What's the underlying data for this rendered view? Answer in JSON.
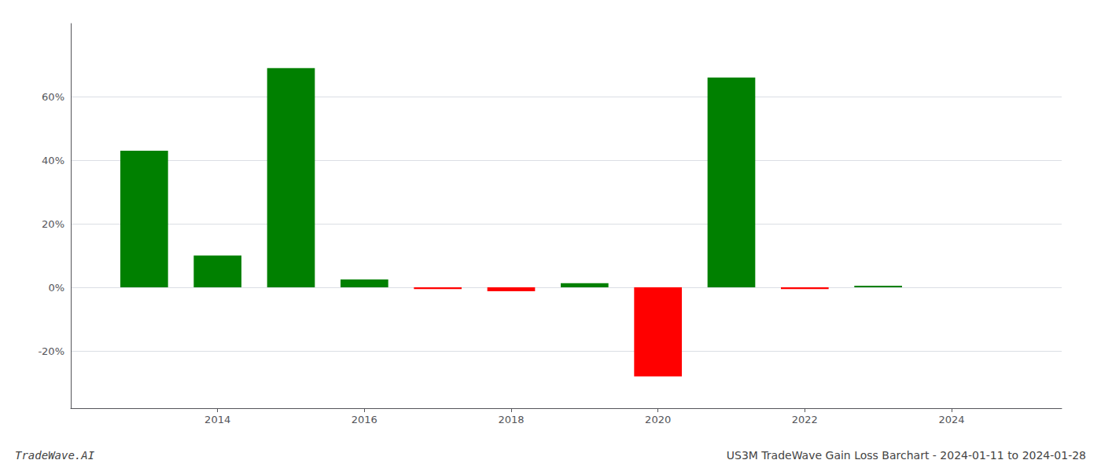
{
  "chart_data": {
    "type": "bar",
    "title": "US3M TradeWave Gain Loss Barchart - 2024-01-11 to 2024-01-28",
    "annotations": [
      "TradeWave.AI"
    ],
    "x": [
      2013,
      2014,
      2015,
      2016,
      2017,
      2018,
      2019,
      2020,
      2021,
      2022,
      2023
    ],
    "values": [
      0.43,
      0.1,
      0.69,
      0.025,
      -0.005,
      -0.012,
      0.013,
      -0.28,
      0.66,
      -0.005,
      0.005
    ],
    "colors": [
      "#008000",
      "#008000",
      "#008000",
      "#008000",
      "#FF0000",
      "#FF0000",
      "#008000",
      "#FF0000",
      "#008000",
      "#FF0000",
      "#008000"
    ],
    "xlim": [
      2012.0,
      2025.5
    ],
    "xticks": [
      2014,
      2016,
      2018,
      2020,
      2022,
      2024
    ],
    "ylim": [
      -0.38,
      0.83
    ],
    "yticks": [
      {
        "value": -0.2,
        "label": "-20%"
      },
      {
        "value": 0.0,
        "label": "0%"
      },
      {
        "value": 0.2,
        "label": "20%"
      },
      {
        "value": 0.4,
        "label": "40%"
      },
      {
        "value": 0.6,
        "label": "60%"
      }
    ],
    "grid": true
  }
}
